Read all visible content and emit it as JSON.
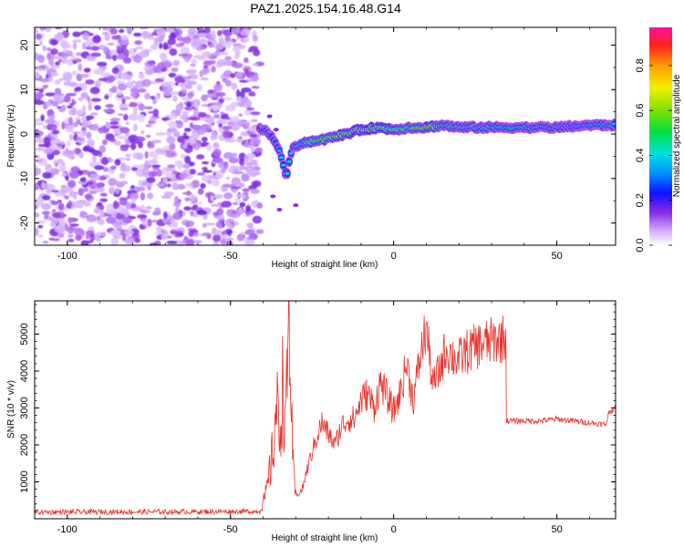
{
  "title": "PAZ1.2025.154.16.48.G14",
  "colors": {
    "snr_line": "#e8312a",
    "scatter_noise": "#a060ff",
    "frame": "#000000"
  },
  "chart_data": [
    {
      "type": "heatmap",
      "xlabel": "Height of straight line (km)",
      "ylabel": "Frequency (Hz)",
      "xlim": [
        -110,
        68
      ],
      "ylim": [
        -25,
        24
      ],
      "x_ticks": [
        -100,
        -50,
        0,
        50
      ],
      "y_ticks": [
        -20,
        -10,
        0,
        10,
        20
      ],
      "colormap": "rainbow (violet to red)",
      "colorbar": {
        "label": "Normalized spectral amplitude",
        "range": [
          0.0,
          0.97
        ],
        "ticks": [
          "0.0",
          "0.2",
          "0.4",
          "0.6",
          "0.8"
        ]
      },
      "noise_region_x": [
        -110,
        -41
      ],
      "ridge": {
        "x": [
          -41,
          -38,
          -36,
          -34,
          -33,
          -31,
          -28,
          -24,
          -20,
          -15,
          -10,
          -5,
          0,
          5,
          10,
          15,
          20,
          30,
          40,
          50,
          60,
          68
        ],
        "y": [
          1.5,
          0,
          -2,
          -6,
          -10,
          -3,
          -2,
          -1.5,
          -1,
          0,
          1,
          1.5,
          1,
          1.5,
          1.5,
          2,
          1.5,
          1.5,
          1.5,
          1.5,
          2,
          2
        ],
        "amplitude": [
          0.3,
          0.3,
          0.3,
          0.45,
          0.55,
          0.35,
          0.6,
          0.7,
          0.75,
          0.8,
          0.9,
          0.9,
          0.8,
          0.6,
          0.9,
          0.45,
          0.55,
          0.5,
          0.45,
          0.45,
          0.4,
          0.4
        ]
      }
    },
    {
      "type": "line",
      "xlabel": "Height of straight line (km)",
      "ylabel": "SNR (10 * v/v)",
      "xlim": [
        -110,
        68
      ],
      "ylim": [
        0,
        5900
      ],
      "x_ticks": [
        -100,
        -50,
        0,
        50
      ],
      "y_ticks": [
        1000,
        2000,
        3000,
        4000,
        5000
      ],
      "series": [
        {
          "x": [
            -110,
            -60,
            -41,
            -39,
            -37,
            -36,
            -35,
            -34,
            -33,
            -32,
            -31,
            -30,
            -28,
            -26,
            -24,
            -22,
            -20,
            -18,
            -16,
            -14,
            -12,
            -10,
            -8,
            -6,
            -4,
            -2,
            0,
            2,
            4,
            6,
            8,
            10,
            12,
            14,
            16,
            18,
            20,
            22,
            24,
            26,
            28,
            30,
            32,
            34,
            34.5,
            36,
            40,
            45,
            50,
            55,
            60,
            65,
            66,
            68
          ],
          "y": [
            180,
            190,
            200,
            700,
            1800,
            3100,
            2300,
            3600,
            2500,
            5800,
            1500,
            600,
            800,
            1500,
            2100,
            2600,
            2300,
            2000,
            2500,
            2700,
            2700,
            3200,
            3400,
            3000,
            3700,
            3300,
            2900,
            3400,
            4200,
            3200,
            4300,
            5200,
            3600,
            4000,
            4600,
            4400,
            4300,
            4500,
            4600,
            4700,
            4750,
            4800,
            4850,
            4900,
            2650,
            2650,
            2650,
            2650,
            2700,
            2650,
            2600,
            2550,
            2900,
            3000
          ]
        }
      ]
    }
  ]
}
